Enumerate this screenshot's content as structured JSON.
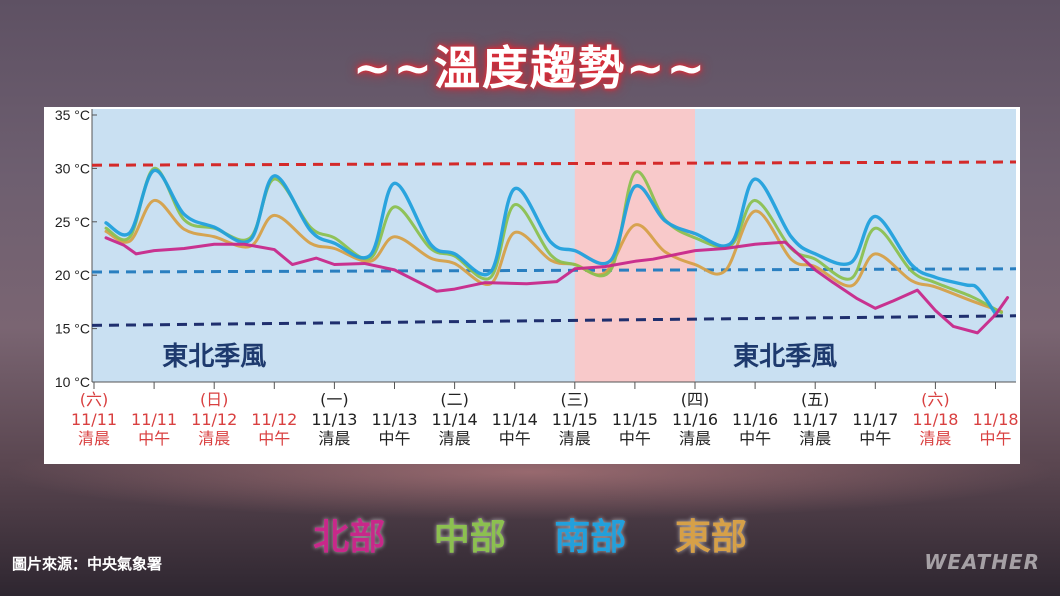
{
  "title": "~~溫度趨勢~~",
  "credit": "圖片來源：中央氣象署",
  "brand": "WEATHER",
  "chart_data": {
    "type": "line",
    "title": "~~溫度趨勢~~",
    "ylim": [
      10,
      35
    ],
    "yticks": [
      {
        "v": 10,
        "label": "10 °C"
      },
      {
        "v": 15,
        "label": "15 °C"
      },
      {
        "v": 20,
        "label": "20 °C"
      },
      {
        "v": 25,
        "label": "25 °C"
      },
      {
        "v": 30,
        "label": "30 °C"
      },
      {
        "v": 35,
        "label": "35 °C"
      }
    ],
    "categories": [
      {
        "day": "(六)",
        "date": "11/11",
        "period": "清晨",
        "color": "#d94040"
      },
      {
        "day": "",
        "date": "11/11",
        "period": "中午",
        "color": "#d94040"
      },
      {
        "day": "(日)",
        "date": "11/12",
        "period": "清晨",
        "color": "#d94040"
      },
      {
        "day": "",
        "date": "11/12",
        "period": "中午",
        "color": "#d94040"
      },
      {
        "day": "(一)",
        "date": "11/13",
        "period": "清晨",
        "color": "#222222"
      },
      {
        "day": "",
        "date": "11/13",
        "period": "中午",
        "color": "#222222"
      },
      {
        "day": "(二)",
        "date": "11/14",
        "period": "清晨",
        "color": "#222222"
      },
      {
        "day": "",
        "date": "11/14",
        "period": "中午",
        "color": "#222222"
      },
      {
        "day": "(三)",
        "date": "11/15",
        "period": "清晨",
        "color": "#222222"
      },
      {
        "day": "",
        "date": "11/15",
        "period": "中午",
        "color": "#222222"
      },
      {
        "day": "(四)",
        "date": "11/16",
        "period": "清晨",
        "color": "#222222"
      },
      {
        "day": "",
        "date": "11/16",
        "period": "中午",
        "color": "#222222"
      },
      {
        "day": "(五)",
        "date": "11/17",
        "period": "清晨",
        "color": "#222222"
      },
      {
        "day": "",
        "date": "11/17",
        "period": "中午",
        "color": "#222222"
      },
      {
        "day": "(六)",
        "date": "11/18",
        "period": "清晨",
        "color": "#d94040"
      },
      {
        "day": "",
        "date": "11/18",
        "period": "中午",
        "color": "#d94040"
      }
    ],
    "ref_lines": [
      {
        "value": 30.3,
        "color": "#d42a2a",
        "slope_to": 30.6
      },
      {
        "value": 20.3,
        "color": "#2a7fc0",
        "slope_to": 20.6
      },
      {
        "value": 15.3,
        "color": "#1f2f6e",
        "slope_to": 16.2
      }
    ],
    "shaded_band": {
      "from": 8,
      "to": 10,
      "color": "#f8c9ca"
    },
    "annotations": [
      {
        "text": "東北季風",
        "x": 2.0,
        "y": 11.6
      },
      {
        "text": "東北季風",
        "x": 11.5,
        "y": 11.6
      }
    ],
    "series": [
      {
        "name": "北部",
        "color": "#c8288a",
        "points": [
          [
            0.2,
            23.5
          ],
          [
            0.5,
            22.8
          ],
          [
            0.7,
            22.0
          ],
          [
            1.0,
            22.3
          ],
          [
            1.5,
            22.5
          ],
          [
            2.0,
            22.9
          ],
          [
            2.5,
            22.9
          ],
          [
            3.0,
            22.4
          ],
          [
            3.3,
            21.0
          ],
          [
            3.7,
            21.6
          ],
          [
            4.0,
            21.0
          ],
          [
            4.5,
            21.1
          ],
          [
            5.0,
            20.5
          ],
          [
            5.7,
            18.5
          ],
          [
            6.0,
            18.7
          ],
          [
            6.5,
            19.3
          ],
          [
            7.2,
            19.2
          ],
          [
            7.7,
            19.4
          ],
          [
            8.0,
            20.6
          ],
          [
            8.5,
            20.8
          ],
          [
            9.0,
            21.3
          ],
          [
            9.3,
            21.5
          ],
          [
            10.0,
            22.3
          ],
          [
            10.5,
            22.5
          ],
          [
            11.0,
            22.9
          ],
          [
            11.5,
            23.1
          ],
          [
            12.0,
            20.5
          ],
          [
            12.3,
            19.3
          ],
          [
            12.7,
            17.8
          ],
          [
            13.0,
            16.9
          ],
          [
            13.3,
            17.6
          ],
          [
            13.7,
            18.6
          ],
          [
            14.0,
            16.7
          ],
          [
            14.3,
            15.2
          ],
          [
            14.7,
            14.6
          ],
          [
            15.0,
            16.3
          ],
          [
            15.2,
            17.9
          ]
        ]
      },
      {
        "name": "中部",
        "color": "#8cc050",
        "points": [
          [
            0.2,
            24.4
          ],
          [
            0.6,
            23.6
          ],
          [
            1.0,
            30.0
          ],
          [
            1.5,
            25.2
          ],
          [
            2.0,
            24.4
          ],
          [
            2.6,
            23.5
          ],
          [
            3.0,
            29.0
          ],
          [
            3.6,
            24.5
          ],
          [
            4.0,
            23.5
          ],
          [
            4.6,
            21.6
          ],
          [
            5.0,
            26.4
          ],
          [
            5.6,
            22.5
          ],
          [
            6.0,
            21.8
          ],
          [
            6.6,
            19.8
          ],
          [
            7.0,
            26.6
          ],
          [
            7.6,
            21.9
          ],
          [
            8.0,
            21.0
          ],
          [
            8.6,
            20.5
          ],
          [
            9.0,
            29.6
          ],
          [
            9.5,
            25.2
          ],
          [
            10.0,
            23.5
          ],
          [
            10.6,
            22.8
          ],
          [
            11.0,
            27.0
          ],
          [
            11.6,
            22.5
          ],
          [
            12.0,
            21.5
          ],
          [
            12.6,
            19.7
          ],
          [
            13.0,
            24.4
          ],
          [
            13.6,
            20.4
          ],
          [
            14.0,
            19.3
          ],
          [
            14.6,
            18.0
          ],
          [
            15.0,
            16.8
          ],
          [
            15.1,
            16.5
          ]
        ]
      },
      {
        "name": "南部",
        "color": "#22a0dc",
        "points": [
          [
            0.2,
            24.9
          ],
          [
            0.6,
            24.0
          ],
          [
            1.0,
            29.8
          ],
          [
            1.5,
            25.7
          ],
          [
            2.0,
            24.5
          ],
          [
            2.6,
            23.3
          ],
          [
            3.0,
            29.3
          ],
          [
            3.6,
            24.2
          ],
          [
            4.0,
            23.0
          ],
          [
            4.6,
            21.9
          ],
          [
            5.0,
            28.6
          ],
          [
            5.6,
            22.9
          ],
          [
            6.0,
            22.0
          ],
          [
            6.6,
            20.3
          ],
          [
            7.0,
            28.1
          ],
          [
            7.6,
            23.1
          ],
          [
            8.0,
            22.3
          ],
          [
            8.6,
            21.4
          ],
          [
            9.0,
            28.3
          ],
          [
            9.5,
            25.1
          ],
          [
            10.0,
            23.9
          ],
          [
            10.6,
            23.0
          ],
          [
            11.0,
            29.0
          ],
          [
            11.6,
            23.6
          ],
          [
            12.0,
            22.0
          ],
          [
            12.6,
            21.2
          ],
          [
            13.0,
            25.5
          ],
          [
            13.6,
            21.0
          ],
          [
            14.0,
            19.8
          ],
          [
            14.5,
            19.1
          ],
          [
            14.7,
            18.8
          ],
          [
            15.0,
            16.4
          ]
        ]
      },
      {
        "name": "東部",
        "color": "#d6a048",
        "points": [
          [
            0.2,
            24.1
          ],
          [
            0.6,
            23.2
          ],
          [
            1.0,
            27.0
          ],
          [
            1.5,
            24.3
          ],
          [
            2.0,
            23.6
          ],
          [
            2.6,
            22.7
          ],
          [
            3.0,
            25.6
          ],
          [
            3.6,
            23.0
          ],
          [
            4.0,
            22.5
          ],
          [
            4.6,
            21.3
          ],
          [
            5.0,
            23.6
          ],
          [
            5.6,
            21.6
          ],
          [
            6.0,
            21.1
          ],
          [
            6.6,
            19.2
          ],
          [
            7.0,
            24.0
          ],
          [
            7.6,
            21.4
          ],
          [
            8.0,
            21.0
          ],
          [
            8.5,
            20.2
          ],
          [
            9.0,
            24.7
          ],
          [
            9.5,
            22.2
          ],
          [
            10.0,
            21.0
          ],
          [
            10.5,
            20.4
          ],
          [
            11.0,
            26.0
          ],
          [
            11.6,
            21.5
          ],
          [
            12.0,
            20.8
          ],
          [
            12.6,
            19.0
          ],
          [
            13.0,
            22.0
          ],
          [
            13.6,
            19.5
          ],
          [
            14.0,
            18.9
          ],
          [
            14.6,
            17.6
          ],
          [
            15.0,
            16.8
          ],
          [
            15.1,
            16.6
          ]
        ]
      }
    ]
  }
}
